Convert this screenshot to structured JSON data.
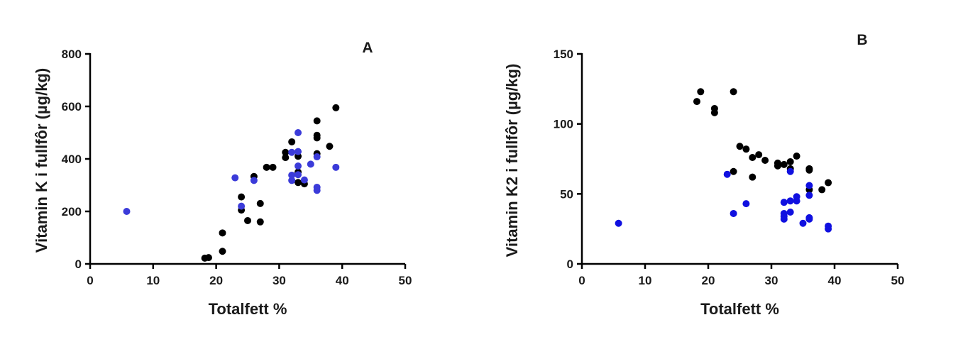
{
  "chart_data": [
    {
      "type": "scatter",
      "panel_label": "A",
      "xlabel": "Totalfett %",
      "ylabel": "Vitamin K i fullfôr (µg/kg)",
      "xlim": [
        0,
        50
      ],
      "ylim": [
        0,
        800
      ],
      "xticks": [
        0,
        10,
        20,
        30,
        40,
        50
      ],
      "yticks": [
        0,
        200,
        400,
        600,
        800
      ],
      "grid": false,
      "series": [
        {
          "color": "#000000",
          "points": [
            [
              18.2,
              22
            ],
            [
              18.8,
              24
            ],
            [
              21,
              48
            ],
            [
              21,
              118
            ],
            [
              24,
              205
            ],
            [
              24,
              255
            ],
            [
              25,
              165
            ],
            [
              26,
              333
            ],
            [
              27,
              230
            ],
            [
              27,
              160
            ],
            [
              28,
              368
            ],
            [
              29,
              368
            ],
            [
              31,
              425
            ],
            [
              31,
              405
            ],
            [
              32,
              465
            ],
            [
              33,
              410
            ],
            [
              33,
              350
            ],
            [
              33,
              310
            ],
            [
              34,
              305
            ],
            [
              36,
              545
            ],
            [
              36,
              490
            ],
            [
              36,
              480
            ],
            [
              36,
              420
            ],
            [
              38,
              448
            ],
            [
              39,
              595
            ]
          ]
        },
        {
          "color": "#3b3bd9",
          "points": [
            [
              5.8,
              200
            ],
            [
              23,
              328
            ],
            [
              24,
              220
            ],
            [
              26,
              318
            ],
            [
              32,
              425
            ],
            [
              32,
              338
            ],
            [
              32,
              318
            ],
            [
              33,
              500
            ],
            [
              33,
              428
            ],
            [
              33,
              373
            ],
            [
              33,
              340
            ],
            [
              34,
              320
            ],
            [
              35,
              380
            ],
            [
              36,
              408
            ],
            [
              36,
              292
            ],
            [
              36,
              280
            ],
            [
              39,
              368
            ]
          ]
        }
      ]
    },
    {
      "type": "scatter",
      "panel_label": "B",
      "xlabel": "Totalfett %",
      "ylabel": "Vitamin K2 i fullfôr (µg/kg)",
      "xlim": [
        0,
        50
      ],
      "ylim": [
        0,
        150
      ],
      "xticks": [
        0,
        10,
        20,
        30,
        40,
        50
      ],
      "yticks": [
        0,
        50,
        100,
        150
      ],
      "grid": false,
      "series": [
        {
          "color": "#000000",
          "points": [
            [
              18.2,
              116
            ],
            [
              18.8,
              123
            ],
            [
              21,
              111
            ],
            [
              21,
              108
            ],
            [
              24,
              123
            ],
            [
              24,
              66
            ],
            [
              25,
              84
            ],
            [
              26,
              82
            ],
            [
              27,
              76
            ],
            [
              27,
              62
            ],
            [
              28,
              78
            ],
            [
              29,
              74
            ],
            [
              31,
              72
            ],
            [
              31,
              70
            ],
            [
              32,
              71
            ],
            [
              33,
              73
            ],
            [
              33,
              68
            ],
            [
              34,
              77
            ],
            [
              36,
              68
            ],
            [
              36,
              67
            ],
            [
              36,
              53
            ],
            [
              38,
              53
            ],
            [
              39,
              58
            ]
          ]
        },
        {
          "color": "#1010e0",
          "points": [
            [
              5.8,
              29
            ],
            [
              23,
              64
            ],
            [
              24,
              36
            ],
            [
              26,
              43
            ],
            [
              32,
              44
            ],
            [
              32,
              36
            ],
            [
              32,
              34
            ],
            [
              32,
              32
            ],
            [
              33,
              66
            ],
            [
              33,
              45
            ],
            [
              33,
              37
            ],
            [
              34,
              48
            ],
            [
              34,
              45
            ],
            [
              35,
              29
            ],
            [
              36,
              56
            ],
            [
              36,
              49
            ],
            [
              36,
              33
            ],
            [
              36,
              32
            ],
            [
              39,
              27
            ],
            [
              39,
              25
            ]
          ]
        }
      ]
    }
  ]
}
